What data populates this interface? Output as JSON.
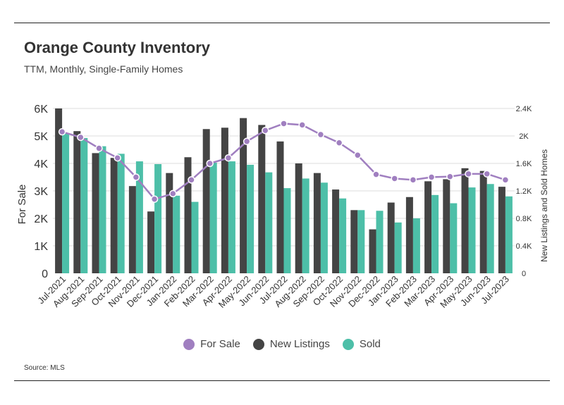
{
  "title": "Orange County Inventory",
  "subtitle": "TTM, Monthly, Single-Family Homes",
  "source": "Source: MLS",
  "colors": {
    "for_sale": "#a07fc0",
    "new_listings": "#444444",
    "sold": "#4dbfa8",
    "grid": "#dddddd"
  },
  "chart_data": {
    "type": "bar",
    "categories": [
      "Jul-2021",
      "Aug-2021",
      "Sep-2021",
      "Oct-2021",
      "Nov-2021",
      "Dec-2021",
      "Jan-2022",
      "Feb-2022",
      "Mar-2022",
      "Apr-2022",
      "May-2022",
      "Jun-2022",
      "Jul-2022",
      "Aug-2022",
      "Sep-2022",
      "Oct-2022",
      "Nov-2022",
      "Dec-2022",
      "Jan-2023",
      "Feb-2023",
      "Mar-2023",
      "Apr-2023",
      "May-2023",
      "Jun-2023",
      "Jul-2023"
    ],
    "series": [
      {
        "name": "For Sale",
        "type": "line",
        "axis": "left",
        "values": [
          5150,
          4950,
          4550,
          4200,
          3500,
          2700,
          2900,
          3400,
          4000,
          4200,
          4800,
          5200,
          5450,
          5400,
          5050,
          4750,
          4300,
          3600,
          3450,
          3400,
          3500,
          3520,
          3620,
          3620,
          3400
        ]
      },
      {
        "name": "New Listings",
        "type": "bar",
        "axis": "right",
        "values": [
          2400,
          2070,
          1750,
          1680,
          1270,
          900,
          1460,
          1690,
          2100,
          2120,
          2260,
          2160,
          1920,
          1600,
          1460,
          1220,
          920,
          640,
          1030,
          1110,
          1340,
          1370,
          1530,
          1490,
          1260
        ]
      },
      {
        "name": "Sold",
        "type": "bar",
        "axis": "right",
        "values": [
          2040,
          1970,
          1850,
          1740,
          1630,
          1590,
          1130,
          1040,
          1610,
          1630,
          1580,
          1470,
          1240,
          1380,
          1320,
          1090,
          920,
          910,
          740,
          800,
          1140,
          1020,
          1250,
          1300,
          1120
        ]
      }
    ],
    "ylabel": "For Sale",
    "y2label": "New Listings and Sold Homes",
    "ylim": [
      0,
      6000
    ],
    "y2lim": [
      0,
      2400
    ],
    "yticks": [
      "0",
      "1K",
      "2K",
      "3K",
      "4K",
      "5K",
      "6K"
    ],
    "y2ticks": [
      "0",
      "0.4K",
      "0.8K",
      "1.2K",
      "1.6K",
      "2K",
      "2.4K"
    ],
    "grid": true,
    "legend_position": "bottom"
  }
}
